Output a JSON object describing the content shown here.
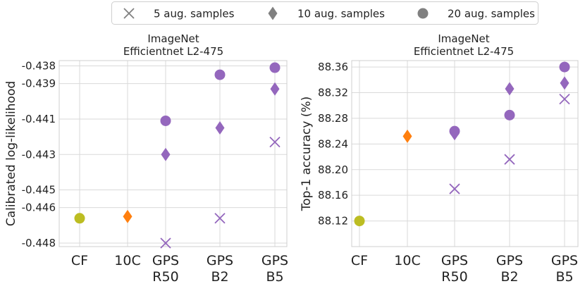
{
  "legend": {
    "items": [
      {
        "label": "5 aug. samples",
        "marker": "x"
      },
      {
        "label": "10 aug. samples",
        "marker": "diamond"
      },
      {
        "label": "20 aug. samples",
        "marker": "circle"
      }
    ]
  },
  "colors": {
    "cf": "#bcbd22",
    "tenc": "#ff7f0e",
    "gps": "#9467bd",
    "legend_marker": "#808080"
  },
  "chart_data": [
    {
      "type": "scatter",
      "title": "ImageNet",
      "subtitle": "Efficientnet L2-475",
      "xlabel": "",
      "ylabel": "Calibrated log-likelihood",
      "categories": [
        "CF",
        "10C",
        "GPS\nR50",
        "GPS\nB2",
        "GPS\nB5"
      ],
      "ylim": [
        -0.4482,
        -0.4377
      ],
      "yticks": [
        -0.448,
        -0.446,
        -0.445,
        -0.443,
        -0.441,
        -0.439,
        -0.438
      ],
      "ytick_labels": [
        "-0.448",
        "-0.446",
        "-0.445",
        "-0.443",
        "-0.441",
        "-0.439",
        "-0.438"
      ],
      "grid": true,
      "points": [
        {
          "category": "CF",
          "value": -0.4466,
          "marker": "circle",
          "color": "cf"
        },
        {
          "category": "10C",
          "value": -0.4465,
          "marker": "diamond",
          "color": "tenc"
        },
        {
          "category": "GPS\nR50",
          "value": -0.448,
          "marker": "x",
          "color": "gps"
        },
        {
          "category": "GPS\nR50",
          "value": -0.443,
          "marker": "diamond",
          "color": "gps"
        },
        {
          "category": "GPS\nR50",
          "value": -0.4411,
          "marker": "circle",
          "color": "gps"
        },
        {
          "category": "GPS\nB2",
          "value": -0.4466,
          "marker": "x",
          "color": "gps"
        },
        {
          "category": "GPS\nB2",
          "value": -0.4415,
          "marker": "diamond",
          "color": "gps"
        },
        {
          "category": "GPS\nB2",
          "value": -0.4385,
          "marker": "circle",
          "color": "gps"
        },
        {
          "category": "GPS\nB5",
          "value": -0.4423,
          "marker": "x",
          "color": "gps"
        },
        {
          "category": "GPS\nB5",
          "value": -0.4393,
          "marker": "diamond",
          "color": "gps"
        },
        {
          "category": "GPS\nB5",
          "value": -0.4381,
          "marker": "circle",
          "color": "gps"
        }
      ]
    },
    {
      "type": "scatter",
      "title": "ImageNet",
      "subtitle": "Efficientnet L2-475",
      "xlabel": "",
      "ylabel": "Top-1 accuracy (%)",
      "categories": [
        "CF",
        "10C",
        "GPS\nR50",
        "GPS\nB2",
        "GPS\nB5"
      ],
      "ylim": [
        88.08,
        88.37
      ],
      "yticks": [
        88.12,
        88.16,
        88.2,
        88.24,
        88.28,
        88.32,
        88.36
      ],
      "ytick_labels": [
        "88.12",
        "88.16",
        "88.20",
        "88.24",
        "88.28",
        "88.32",
        "88.36"
      ],
      "grid": true,
      "points": [
        {
          "category": "CF",
          "value": 88.12,
          "marker": "circle",
          "color": "cf"
        },
        {
          "category": "10C",
          "value": 88.252,
          "marker": "diamond",
          "color": "tenc"
        },
        {
          "category": "GPS\nR50",
          "value": 88.17,
          "marker": "x",
          "color": "gps"
        },
        {
          "category": "GPS\nR50",
          "value": 88.256,
          "marker": "diamond",
          "color": "gps"
        },
        {
          "category": "GPS\nR50",
          "value": 88.26,
          "marker": "circle",
          "color": "gps"
        },
        {
          "category": "GPS\nB2",
          "value": 88.216,
          "marker": "x",
          "color": "gps"
        },
        {
          "category": "GPS\nB2",
          "value": 88.285,
          "marker": "circle",
          "color": "gps"
        },
        {
          "category": "GPS\nB2",
          "value": 88.326,
          "marker": "diamond",
          "color": "gps"
        },
        {
          "category": "GPS\nB5",
          "value": 88.31,
          "marker": "x",
          "color": "gps"
        },
        {
          "category": "GPS\nB5",
          "value": 88.335,
          "marker": "diamond",
          "color": "gps"
        },
        {
          "category": "GPS\nB5",
          "value": 88.36,
          "marker": "circle",
          "color": "gps"
        }
      ]
    }
  ]
}
